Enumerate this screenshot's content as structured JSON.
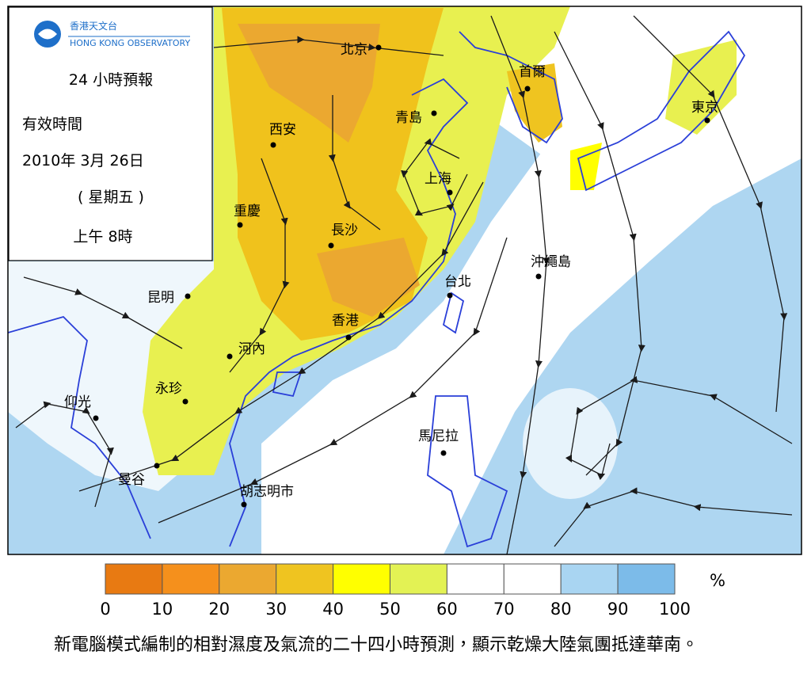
{
  "header": {
    "logo_cn": "香港天文台",
    "logo_en": "HONG KONG OBSERVATORY"
  },
  "info": {
    "forecast": "24 小時預報",
    "valid_label": "有效時間",
    "date": "2010年 3月 26日",
    "weekday": "( 星期五 )",
    "time": "上午 8時"
  },
  "cities": [
    "北京",
    "首爾",
    "東京",
    "青島",
    "西安",
    "上海",
    "重慶",
    "長沙",
    "沖繩島",
    "台北",
    "昆明",
    "香港",
    "河內",
    "永珍",
    "仰光",
    "馬尼拉",
    "曼谷",
    "胡志明市"
  ],
  "legend": {
    "ticks": [
      "0",
      "10",
      "20",
      "30",
      "40",
      "50",
      "60",
      "70",
      "80",
      "90",
      "100"
    ],
    "colors": [
      "#e87a12",
      "#f5901c",
      "#eba830",
      "#efc420",
      "#ffff00",
      "#e3f254",
      "#ffffff",
      "#ffffff",
      "#a9d5f2",
      "#7cbbe9"
    ],
    "unit": "%"
  },
  "caption": "新電腦模式編制的相對濕度及氣流的二十四小時預測，顯示乾燥大陸氣團抵達華南。"
}
